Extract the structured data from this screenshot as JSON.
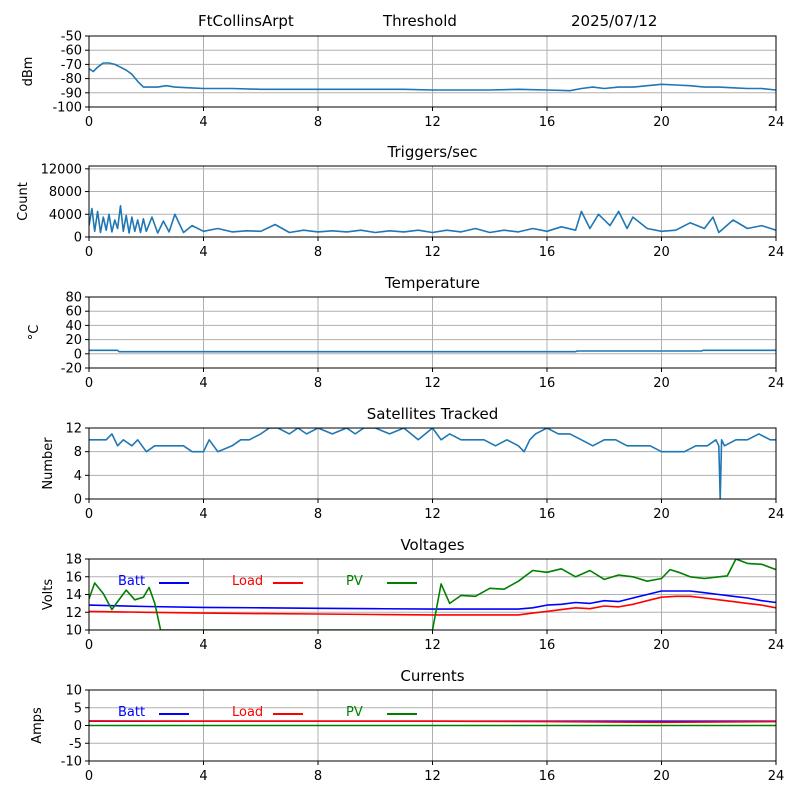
{
  "header": {
    "station": "FtCollinsArpt",
    "mode": "Threshold",
    "date": "2025/07/12"
  },
  "colors": {
    "series_default": "#1f77b4",
    "batt": "#0000ff",
    "load": "#ff0000",
    "pv": "#008000",
    "grid": "#b0b0b0"
  },
  "chart_data": [
    {
      "id": "threshold",
      "type": "line",
      "title": "",
      "xlabel": "",
      "ylabel": "dBm",
      "xlim": [
        0,
        24
      ],
      "ylim": [
        -100,
        -50
      ],
      "xticks": [
        0,
        4,
        8,
        12,
        16,
        20,
        24
      ],
      "yticks": [
        -100,
        -90,
        -80,
        -70,
        -60,
        -50
      ],
      "grid": true,
      "series": [
        {
          "color": "#1f77b4",
          "x": [
            0,
            0.15,
            0.3,
            0.5,
            0.7,
            0.9,
            1.1,
            1.3,
            1.5,
            1.7,
            1.9,
            2.1,
            2.4,
            2.7,
            3.0,
            3.5,
            4,
            5,
            6,
            7,
            8,
            9,
            10,
            11,
            12,
            13,
            14,
            15,
            16,
            16.8,
            17.2,
            17.6,
            18,
            18.5,
            19,
            19.5,
            20,
            20.5,
            21,
            21.5,
            22,
            22.5,
            23,
            23.5,
            24
          ],
          "y": [
            -73,
            -75,
            -72,
            -69,
            -69,
            -70,
            -72,
            -74,
            -77,
            -82,
            -86,
            -86,
            -86,
            -85,
            -86,
            -86.5,
            -87,
            -87,
            -87.5,
            -87.5,
            -87.5,
            -87.5,
            -87.5,
            -87.5,
            -88,
            -88,
            -88,
            -87.5,
            -88,
            -88.5,
            -87,
            -86,
            -87,
            -86,
            -86,
            -85,
            -84,
            -84.5,
            -85,
            -86,
            -86,
            -86.5,
            -87,
            -87,
            -88
          ]
        }
      ]
    },
    {
      "id": "triggers",
      "type": "line",
      "title": "Triggers/sec",
      "xlabel": "",
      "ylabel": "Count",
      "xlim": [
        0,
        24
      ],
      "ylim": [
        0,
        12500
      ],
      "xticks": [
        0,
        4,
        8,
        12,
        16,
        20,
        24
      ],
      "yticks": [
        0,
        4000,
        8000,
        12000
      ],
      "grid": true,
      "series": [
        {
          "color": "#1f77b4",
          "x": [
            0,
            0.1,
            0.2,
            0.3,
            0.4,
            0.5,
            0.6,
            0.7,
            0.8,
            0.9,
            1.0,
            1.1,
            1.2,
            1.3,
            1.4,
            1.5,
            1.6,
            1.7,
            1.8,
            1.9,
            2.0,
            2.2,
            2.4,
            2.6,
            2.8,
            3.0,
            3.3,
            3.6,
            4.0,
            4.5,
            5.0,
            5.5,
            6.0,
            6.5,
            7.0,
            7.5,
            8.0,
            8.5,
            9.0,
            9.5,
            10,
            10.5,
            11,
            11.5,
            12,
            12.5,
            13,
            13.5,
            14,
            14.5,
            15,
            15.5,
            16,
            16.5,
            17,
            17.2,
            17.5,
            17.8,
            18.2,
            18.5,
            18.8,
            19,
            19.5,
            20,
            20.5,
            21,
            21.5,
            21.8,
            22,
            22.5,
            23,
            23.5,
            24
          ],
          "y": [
            2000,
            5000,
            1000,
            4500,
            800,
            3500,
            1200,
            4000,
            900,
            3000,
            1500,
            5500,
            1000,
            3800,
            700,
            3500,
            1000,
            3000,
            800,
            3200,
            1000,
            3500,
            700,
            2800,
            900,
            4000,
            800,
            2000,
            1000,
            1500,
            900,
            1100,
            1000,
            2200,
            800,
            1200,
            900,
            1100,
            900,
            1200,
            800,
            1100,
            900,
            1200,
            800,
            1200,
            900,
            1500,
            800,
            1200,
            900,
            1500,
            1000,
            1800,
            1200,
            4500,
            1500,
            4000,
            2000,
            4500,
            1500,
            3500,
            1500,
            1000,
            1200,
            2500,
            1500,
            3500,
            800,
            3000,
            1500,
            2000,
            1200
          ]
        }
      ]
    },
    {
      "id": "temperature",
      "type": "line",
      "title": "Temperature",
      "xlabel": "",
      "ylabel": "°C",
      "xlim": [
        0,
        24
      ],
      "ylim": [
        -20,
        80
      ],
      "xticks": [
        0,
        4,
        8,
        12,
        16,
        20,
        24
      ],
      "yticks": [
        -20,
        0,
        20,
        40,
        60,
        80
      ],
      "grid": true,
      "series": [
        {
          "color": "#1f77b4",
          "x": [
            0,
            1.0,
            1.05,
            17.0,
            17.05,
            21.4,
            21.45,
            24
          ],
          "y": [
            5,
            5,
            3,
            3,
            4,
            4,
            5,
            5
          ]
        }
      ]
    },
    {
      "id": "satellites",
      "type": "line",
      "title": "Satellites Tracked",
      "xlabel": "",
      "ylabel": "Number",
      "xlim": [
        0,
        24
      ],
      "ylim": [
        0,
        12
      ],
      "xticks": [
        0,
        4,
        8,
        12,
        16,
        20,
        24
      ],
      "yticks": [
        0,
        4,
        8,
        12
      ],
      "grid": true,
      "series": [
        {
          "color": "#1f77b4",
          "x": [
            0,
            0.6,
            0.8,
            1.0,
            1.2,
            1.5,
            1.7,
            2.0,
            2.3,
            2.6,
            3.0,
            3.3,
            3.6,
            4.0,
            4.2,
            4.5,
            5.0,
            5.3,
            5.6,
            6.0,
            6.3,
            6.6,
            7.0,
            7.3,
            7.6,
            8.0,
            8.5,
            9.0,
            9.3,
            9.6,
            10,
            10.5,
            11,
            11.5,
            12,
            12.3,
            12.6,
            13,
            13.4,
            13.8,
            14.2,
            14.6,
            15,
            15.2,
            15.4,
            15.6,
            16,
            16.4,
            16.8,
            17.2,
            17.6,
            18,
            18.4,
            18.8,
            19.2,
            19.6,
            20,
            20.4,
            20.8,
            21.2,
            21.6,
            21.9,
            22.0,
            22.05,
            22.1,
            22.2,
            22.6,
            23,
            23.4,
            23.8,
            24
          ],
          "y": [
            10,
            10,
            11,
            9,
            10,
            9,
            10,
            8,
            9,
            9,
            9,
            9,
            8,
            8,
            10,
            8,
            9,
            10,
            10,
            11,
            12,
            12,
            11,
            12,
            11,
            12,
            11,
            12,
            11,
            12,
            12,
            11,
            12,
            10,
            12,
            10,
            11,
            10,
            10,
            10,
            9,
            10,
            9,
            8,
            10,
            11,
            12,
            11,
            11,
            10,
            9,
            10,
            10,
            9,
            9,
            9,
            8,
            8,
            8,
            9,
            9,
            10,
            9,
            0,
            10,
            9,
            10,
            10,
            11,
            10,
            10
          ]
        }
      ]
    },
    {
      "id": "voltages",
      "type": "line",
      "title": "Voltages",
      "xlabel": "",
      "ylabel": "Volts",
      "xlim": [
        0,
        24
      ],
      "ylim": [
        10,
        18
      ],
      "xticks": [
        0,
        4,
        8,
        12,
        16,
        20,
        24
      ],
      "yticks": [
        10,
        12,
        14,
        16,
        18
      ],
      "grid": true,
      "legend": [
        "Batt",
        "Load",
        "PV"
      ],
      "legend_placement": "top-left",
      "series": [
        {
          "name": "Batt",
          "color": "#0000ff",
          "x": [
            0,
            2,
            4,
            6,
            8,
            10,
            12,
            14,
            15,
            15.5,
            16,
            16.5,
            17,
            17.5,
            18,
            18.5,
            19,
            19.5,
            20,
            20.5,
            21,
            21.5,
            22,
            22.5,
            23,
            23.5,
            24
          ],
          "y": [
            12.8,
            12.65,
            12.55,
            12.5,
            12.45,
            12.4,
            12.35,
            12.35,
            12.35,
            12.5,
            12.8,
            12.9,
            13.1,
            13.0,
            13.3,
            13.2,
            13.6,
            14.0,
            14.4,
            14.4,
            14.4,
            14.2,
            14.0,
            13.8,
            13.6,
            13.3,
            13.1
          ]
        },
        {
          "name": "Load",
          "color": "#ff0000",
          "x": [
            0,
            2,
            4,
            6,
            8,
            10,
            12,
            14,
            15,
            15.5,
            16,
            16.5,
            17,
            17.5,
            18,
            18.5,
            19,
            19.5,
            20,
            20.5,
            21,
            21.5,
            22,
            22.5,
            23,
            23.5,
            24
          ],
          "y": [
            12.1,
            12.0,
            11.9,
            11.85,
            11.8,
            11.75,
            11.7,
            11.7,
            11.7,
            11.9,
            12.1,
            12.3,
            12.5,
            12.4,
            12.7,
            12.6,
            12.9,
            13.3,
            13.7,
            13.8,
            13.8,
            13.6,
            13.4,
            13.2,
            13.0,
            12.8,
            12.5
          ]
        },
        {
          "name": "PV",
          "color": "#008000",
          "x": [
            0,
            0.2,
            0.5,
            0.8,
            1.0,
            1.3,
            1.6,
            1.9,
            2.1,
            2.3,
            2.5,
            12.0,
            12.3,
            12.6,
            13.0,
            13.5,
            14.0,
            14.5,
            15.0,
            15.5,
            16.0,
            16.5,
            17.0,
            17.5,
            18.0,
            18.5,
            19.0,
            19.5,
            20.0,
            20.3,
            20.6,
            21.0,
            21.5,
            22.0,
            22.3,
            22.6,
            23.0,
            23.5,
            24
          ],
          "y": [
            13.5,
            15.3,
            14.1,
            12.3,
            13.2,
            14.5,
            13.4,
            13.7,
            14.8,
            13.0,
            10.0,
            10.0,
            15.2,
            13.0,
            13.9,
            13.8,
            14.7,
            14.6,
            15.5,
            16.7,
            16.5,
            16.9,
            16.0,
            16.7,
            15.7,
            16.2,
            16.0,
            15.5,
            15.8,
            16.8,
            16.5,
            16.0,
            15.8,
            16.0,
            16.1,
            18.0,
            17.5,
            17.4,
            16.8
          ]
        }
      ]
    },
    {
      "id": "currents",
      "type": "line",
      "title": "Currents",
      "xlabel": "",
      "ylabel": "Amps",
      "xlim": [
        0,
        24
      ],
      "ylim": [
        -10,
        10
      ],
      "xticks": [
        0,
        4,
        8,
        12,
        16,
        20,
        24
      ],
      "yticks": [
        -10,
        -5,
        0,
        5,
        10
      ],
      "grid": true,
      "legend": [
        "Batt",
        "Load",
        "PV"
      ],
      "legend_placement": "top-left",
      "series": [
        {
          "name": "Batt",
          "color": "#0000ff",
          "x": [
            0,
            24
          ],
          "y": [
            1.2,
            1.2
          ]
        },
        {
          "name": "Load",
          "color": "#ff0000",
          "x": [
            0,
            4,
            8,
            12,
            16,
            20,
            24
          ],
          "y": [
            1.3,
            1.2,
            1.2,
            1.2,
            1.1,
            0.9,
            1.1
          ]
        },
        {
          "name": "PV",
          "color": "#008000",
          "x": [
            0,
            24
          ],
          "y": [
            0,
            0
          ]
        }
      ]
    }
  ]
}
